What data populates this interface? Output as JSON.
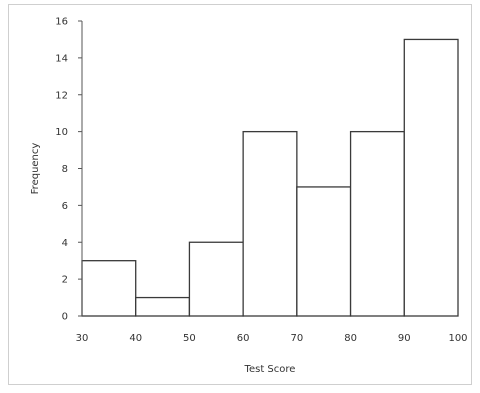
{
  "chart_data": {
    "type": "bar",
    "title": "",
    "xlabel": "Test Score",
    "ylabel": "Frequency",
    "bins": [
      {
        "from": 30,
        "to": 40,
        "value": 3
      },
      {
        "from": 40,
        "to": 50,
        "value": 1
      },
      {
        "from": 50,
        "to": 60,
        "value": 4
      },
      {
        "from": 60,
        "to": 70,
        "value": 10
      },
      {
        "from": 70,
        "to": 80,
        "value": 7
      },
      {
        "from": 80,
        "to": 90,
        "value": 10
      },
      {
        "from": 90,
        "to": 100,
        "value": 15
      }
    ],
    "xlim": [
      30,
      100
    ],
    "ylim": [
      0,
      16
    ],
    "xticks": [
      "30",
      "40",
      "50",
      "60",
      "70",
      "80",
      "90",
      "100"
    ],
    "yticks": [
      "0",
      "2",
      "4",
      "6",
      "8",
      "10",
      "12",
      "14",
      "16"
    ],
    "grid": false,
    "legend": "none",
    "bar_fill": "#ffffff",
    "bar_stroke": "#3a3a3a"
  }
}
